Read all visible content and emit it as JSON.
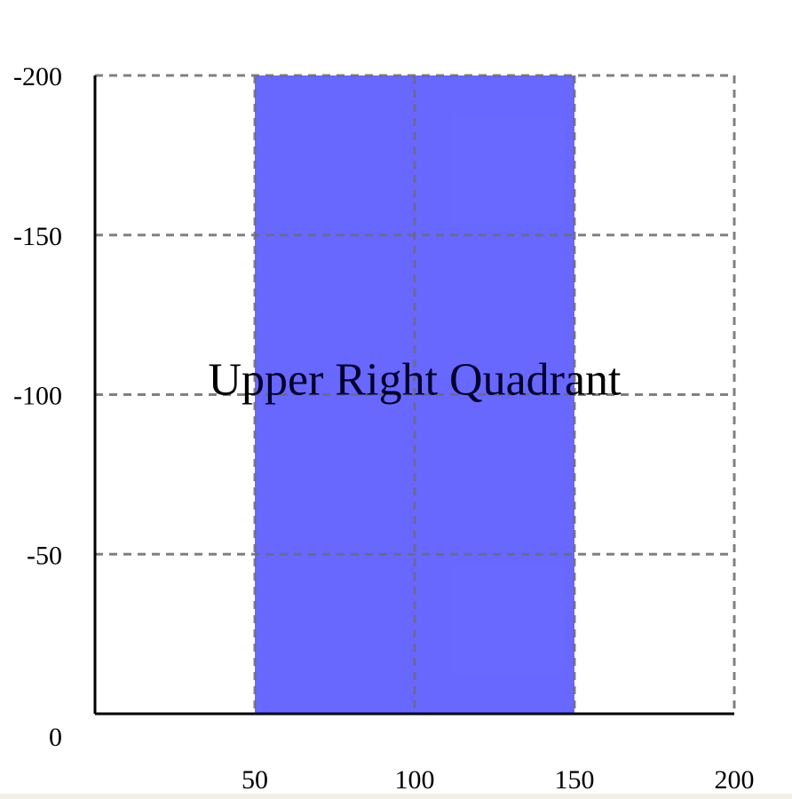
{
  "chart_data": {
    "type": "area",
    "title": "",
    "xlabel": "",
    "ylabel": "",
    "xlim": [
      0,
      200
    ],
    "ylim": [
      0,
      -200
    ],
    "x_ticks": [
      50,
      100,
      150,
      200
    ],
    "y_ticks": [
      0,
      -50,
      -100,
      -150,
      -200
    ],
    "x_tick_labels": [
      "50",
      "100",
      "150",
      "200"
    ],
    "y_tick_labels": [
      "0",
      "-50",
      "-100",
      "-150",
      "-200"
    ],
    "grid": true,
    "legend": "none",
    "shaded_region": {
      "x_start": 50,
      "x_end": 150,
      "y_start": 0,
      "y_end": -200,
      "color": "#0000ff",
      "opacity": 0.5
    },
    "annotations": [
      {
        "text": "Upper Right Quadrant",
        "x": 100,
        "y": -105,
        "anchor": "middle",
        "color": "#000000"
      }
    ]
  },
  "colors": {
    "axis": "#000000",
    "grid": "#808080",
    "background": "#ffffff",
    "footer": "#f2eee8"
  }
}
